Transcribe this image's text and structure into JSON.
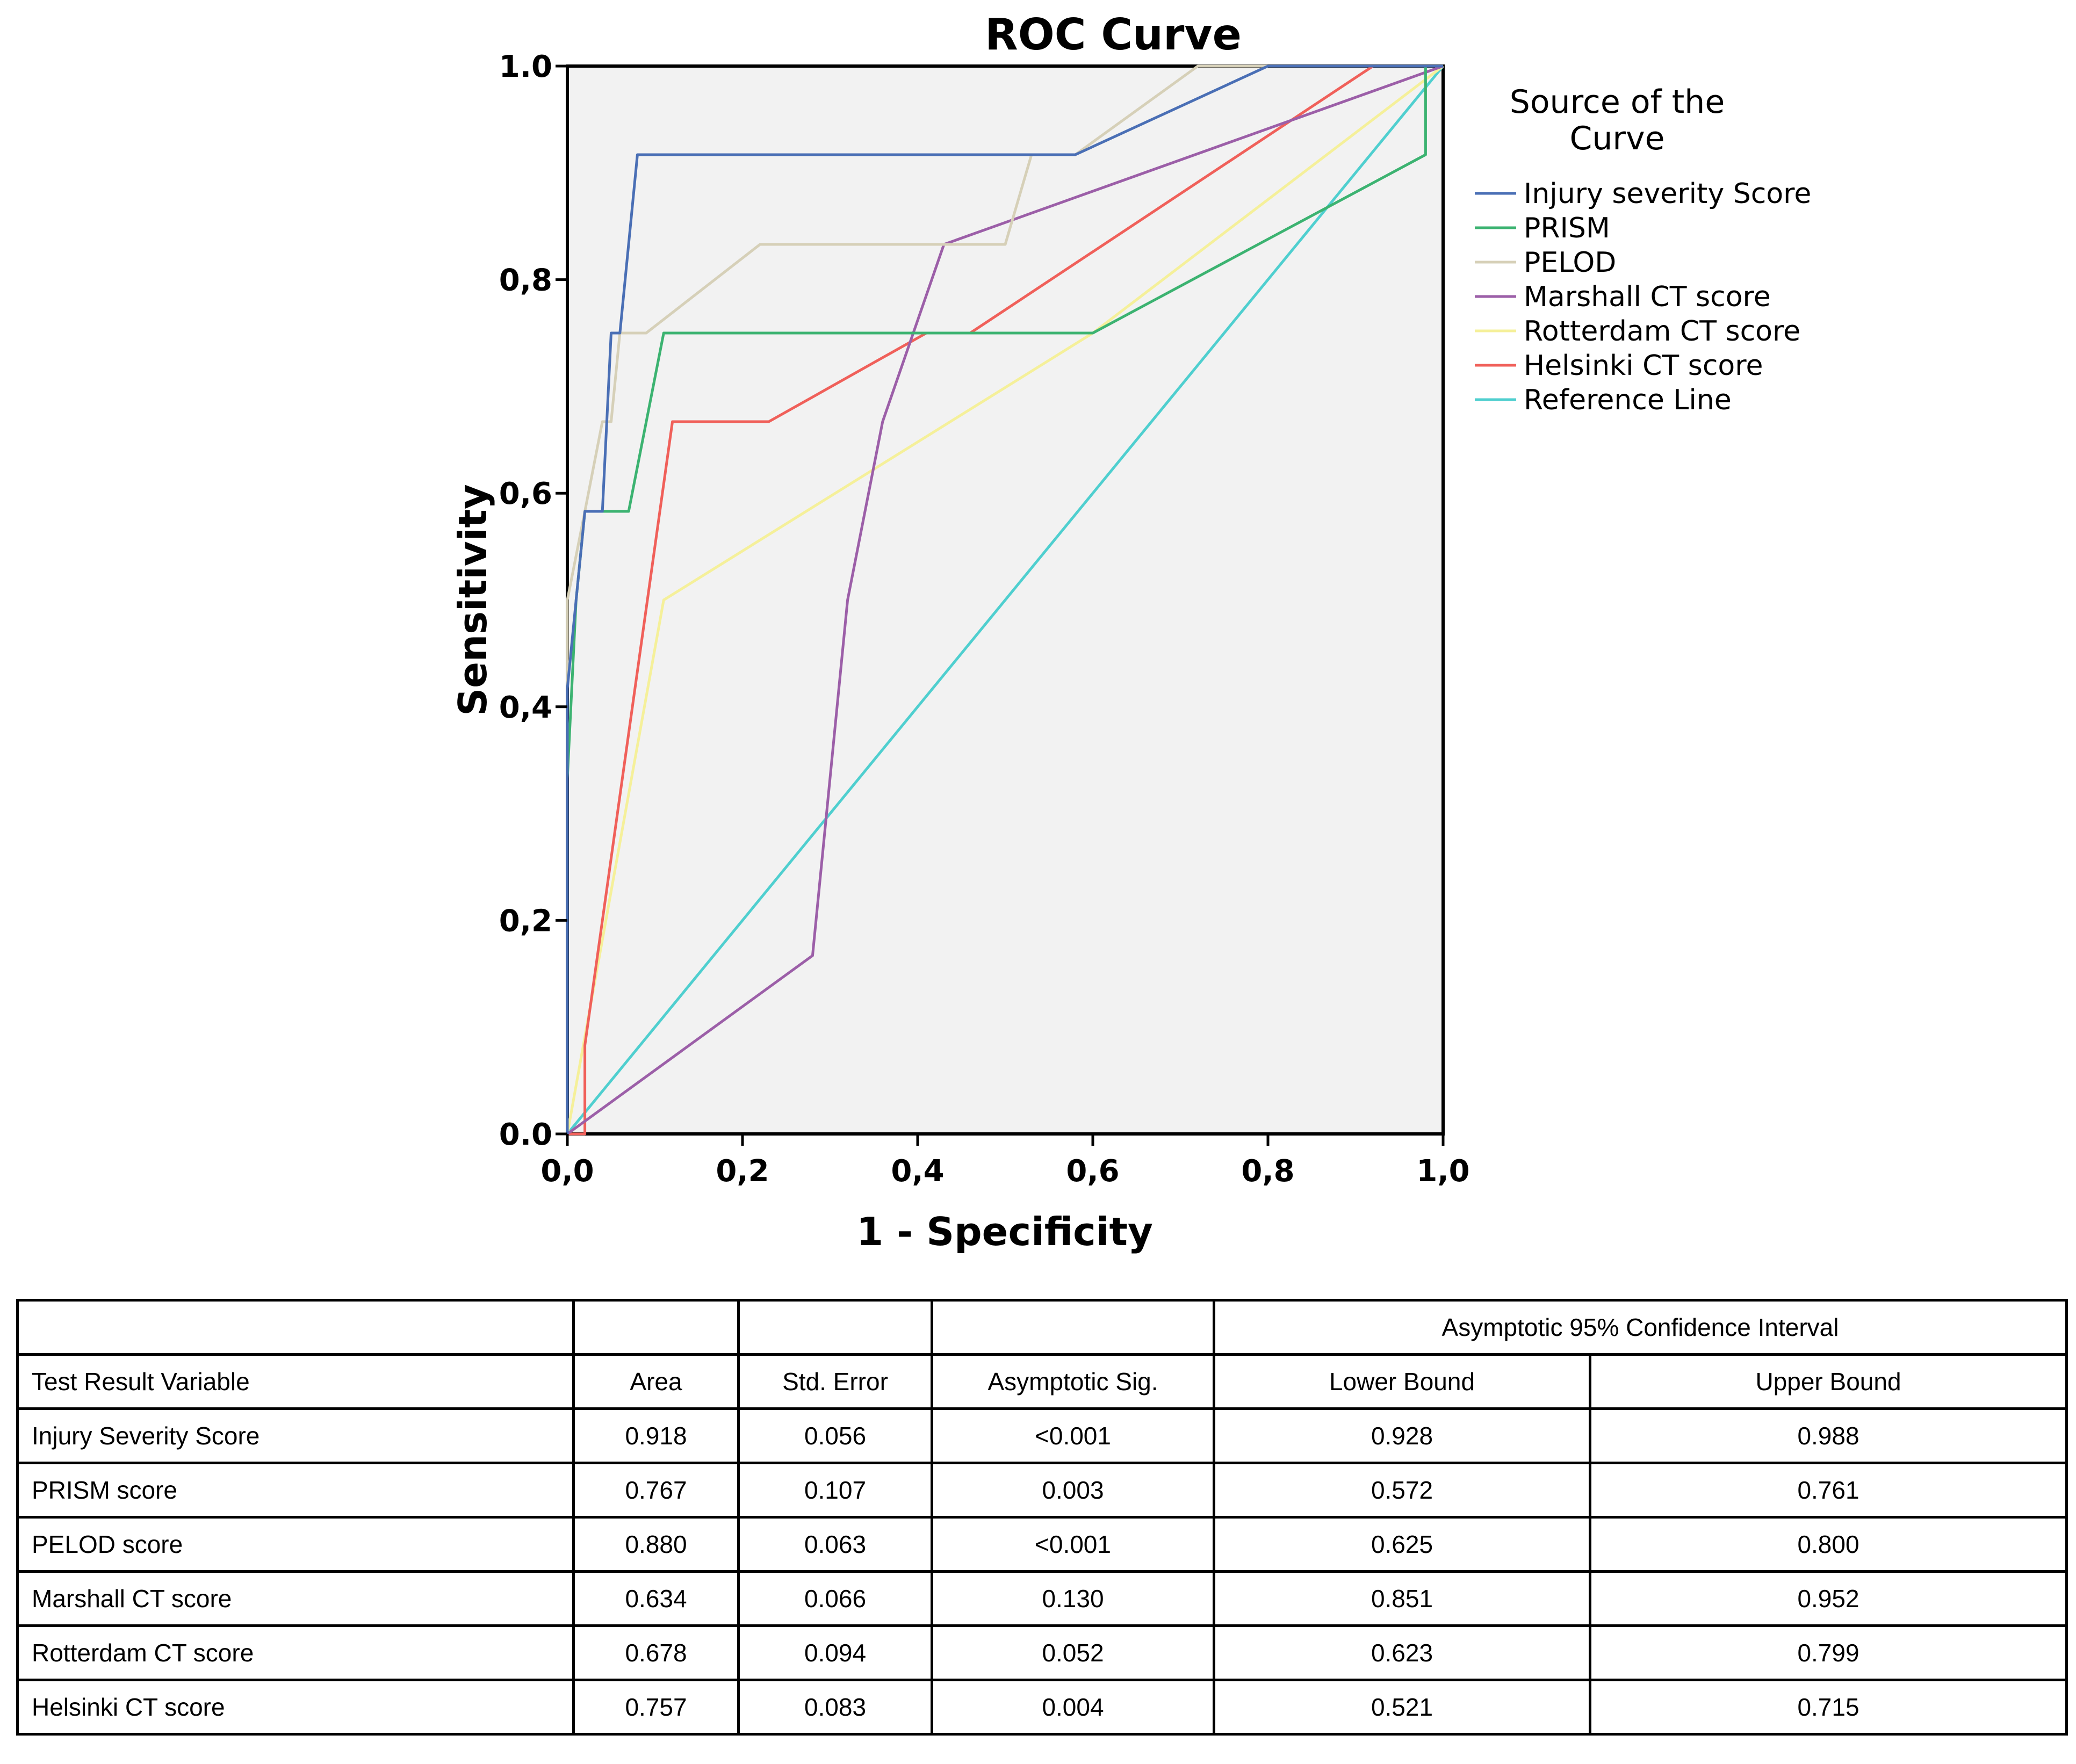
{
  "chart_data": {
    "type": "line",
    "title": "ROC Curve",
    "xlabel": "1 - Specificity",
    "ylabel": "Sensitivity",
    "xlim": [
      0,
      1
    ],
    "ylim": [
      0,
      1
    ],
    "x_ticks": [
      "0,0",
      "0,2",
      "0,4",
      "0,6",
      "0,8",
      "1,0"
    ],
    "y_ticks": [
      "0.0",
      "0,2",
      "0,4",
      "0,6",
      "0,8",
      "1.0"
    ],
    "grid": false,
    "plot_background": "#f2f2f2",
    "legend": {
      "position": "right",
      "title_lines": [
        "Source of the",
        "Curve"
      ]
    },
    "series": [
      {
        "name": "Injury severity Score",
        "color": "#4a6fb5",
        "points": [
          [
            0,
            0
          ],
          [
            0,
            0.417
          ],
          [
            0.01,
            0.5
          ],
          [
            0.02,
            0.583
          ],
          [
            0.04,
            0.583
          ],
          [
            0.05,
            0.75
          ],
          [
            0.06,
            0.75
          ],
          [
            0.08,
            0.917
          ],
          [
            0.58,
            0.917
          ],
          [
            0.8,
            1
          ],
          [
            1,
            1
          ]
        ]
      },
      {
        "name": "PRISM",
        "color": "#3cb371",
        "points": [
          [
            0,
            0
          ],
          [
            0,
            0.333
          ],
          [
            0.01,
            0.5
          ],
          [
            0.02,
            0.583
          ],
          [
            0.07,
            0.583
          ],
          [
            0.11,
            0.75
          ],
          [
            0.6,
            0.75
          ],
          [
            0.98,
            0.917
          ],
          [
            0.98,
            1
          ],
          [
            1,
            1
          ]
        ]
      },
      {
        "name": "PELOD",
        "color": "#d6d0b8",
        "points": [
          [
            0,
            0
          ],
          [
            0,
            0.5
          ],
          [
            0.02,
            0.583
          ],
          [
            0.04,
            0.667
          ],
          [
            0.05,
            0.667
          ],
          [
            0.06,
            0.75
          ],
          [
            0.09,
            0.75
          ],
          [
            0.22,
            0.833
          ],
          [
            0.5,
            0.833
          ],
          [
            0.53,
            0.917
          ],
          [
            0.58,
            0.917
          ],
          [
            0.72,
            1
          ],
          [
            1,
            1
          ]
        ]
      },
      {
        "name": "Marshall CT score",
        "color": "#9c5fa8",
        "points": [
          [
            0,
            0
          ],
          [
            0.28,
            0.167
          ],
          [
            0.32,
            0.5
          ],
          [
            0.36,
            0.667
          ],
          [
            0.43,
            0.833
          ],
          [
            1,
            1
          ]
        ]
      },
      {
        "name": "Rotterdam CT score",
        "color": "#f5f09a",
        "points": [
          [
            0,
            0
          ],
          [
            0.11,
            0.5
          ],
          [
            0.6,
            0.75
          ],
          [
            1,
            1
          ]
        ]
      },
      {
        "name": "Helsinki CT score",
        "color": "#f0605a",
        "points": [
          [
            0,
            0
          ],
          [
            0.02,
            0
          ],
          [
            0.02,
            0.083
          ],
          [
            0.12,
            0.667
          ],
          [
            0.23,
            0.667
          ],
          [
            0.41,
            0.75
          ],
          [
            0.46,
            0.75
          ],
          [
            0.92,
            1
          ],
          [
            1,
            1
          ]
        ]
      },
      {
        "name": "Reference Line",
        "color": "#4fcfcf",
        "points": [
          [
            0,
            0
          ],
          [
            1,
            1
          ]
        ]
      }
    ]
  },
  "table": {
    "group_header": "Asymptotic 95% Confidence Interval",
    "columns": [
      "Test Result Variable",
      "Area",
      "Std. Error",
      "Asymptotic Sig.",
      "Lower Bound",
      "Upper Bound"
    ],
    "rows": [
      [
        "Injury Severity Score",
        "0.918",
        "0.056",
        "<0.001",
        "0.928",
        "0.988"
      ],
      [
        "PRISM score",
        "0.767",
        "0.107",
        "0.003",
        "0.572",
        "0.761"
      ],
      [
        "PELOD score",
        "0.880",
        "0.063",
        "<0.001",
        "0.625",
        "0.800"
      ],
      [
        "Marshall CT score",
        "0.634",
        "0.066",
        "0.130",
        "0.851",
        "0.952"
      ],
      [
        "Rotterdam CT score",
        "0.678",
        "0.094",
        "0.052",
        "0.623",
        "0.799"
      ],
      [
        "Helsinki CT score",
        "0.757",
        "0.083",
        "0.004",
        "0.521",
        "0.715"
      ]
    ]
  }
}
